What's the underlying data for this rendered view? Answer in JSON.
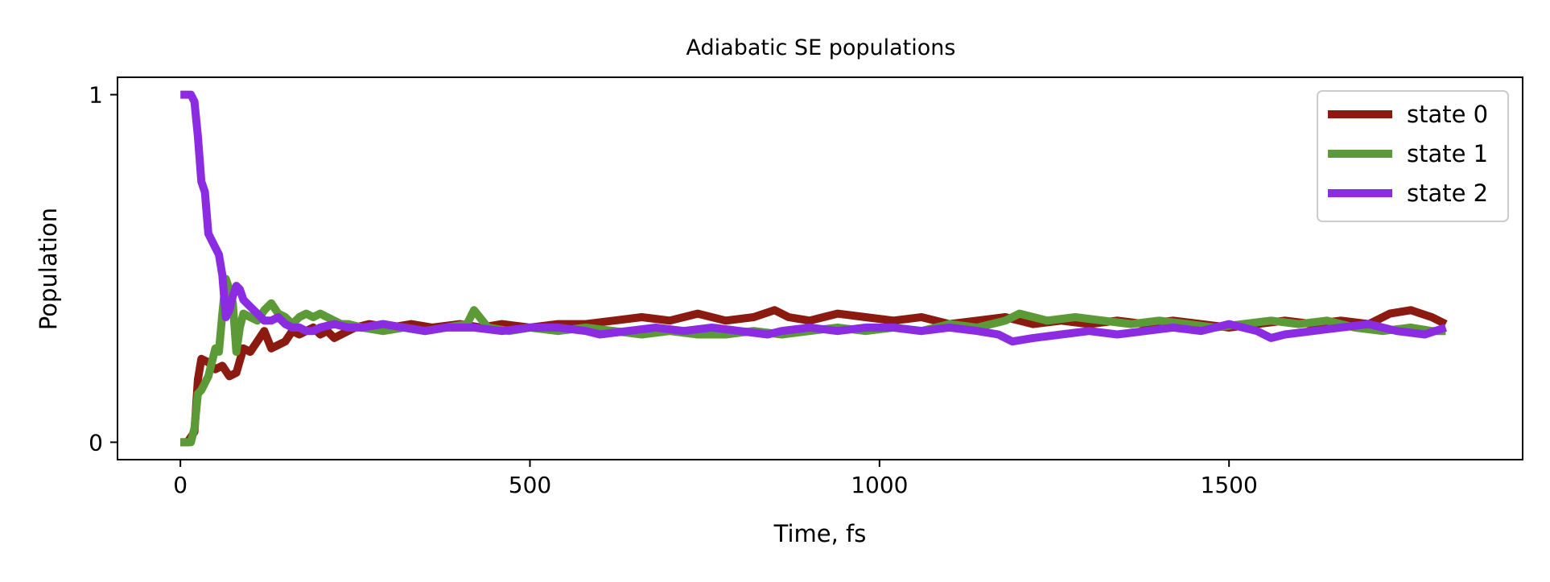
{
  "chart_data": {
    "type": "line",
    "title": "Adiabatic SE populations",
    "xlabel": "Time, fs",
    "ylabel": "Population",
    "xlim": [
      -90,
      1920
    ],
    "ylim": [
      -0.05,
      1.05
    ],
    "xticks": [
      0,
      500,
      1000,
      1500
    ],
    "xtick_labels": [
      "0",
      "500",
      "1000",
      "1500"
    ],
    "yticks": [
      0,
      1
    ],
    "ytick_labels": [
      "0",
      "1"
    ],
    "grid": false,
    "legend_position": "top-right",
    "series": [
      {
        "name": "state 0",
        "color": "#8b1a10",
        "x": [
          0,
          10,
          20,
          25,
          30,
          40,
          50,
          60,
          70,
          80,
          90,
          100,
          110,
          120,
          130,
          140,
          150,
          160,
          170,
          180,
          190,
          200,
          210,
          220,
          230,
          240,
          250,
          270,
          300,
          330,
          360,
          400,
          430,
          460,
          500,
          540,
          580,
          620,
          660,
          700,
          740,
          780,
          820,
          850,
          870,
          900,
          940,
          980,
          1020,
          1060,
          1100,
          1140,
          1180,
          1220,
          1260,
          1300,
          1340,
          1380,
          1420,
          1460,
          1500,
          1540,
          1580,
          1620,
          1660,
          1700,
          1730,
          1760,
          1790,
          1810
        ],
        "y": [
          0.0,
          0.0,
          0.03,
          0.18,
          0.24,
          0.23,
          0.21,
          0.22,
          0.19,
          0.2,
          0.27,
          0.26,
          0.29,
          0.32,
          0.27,
          0.28,
          0.29,
          0.32,
          0.31,
          0.32,
          0.33,
          0.31,
          0.32,
          0.3,
          0.31,
          0.32,
          0.33,
          0.34,
          0.33,
          0.34,
          0.33,
          0.34,
          0.33,
          0.34,
          0.33,
          0.34,
          0.34,
          0.35,
          0.36,
          0.35,
          0.37,
          0.35,
          0.36,
          0.38,
          0.36,
          0.35,
          0.37,
          0.36,
          0.35,
          0.36,
          0.34,
          0.35,
          0.36,
          0.34,
          0.35,
          0.34,
          0.35,
          0.34,
          0.35,
          0.34,
          0.33,
          0.34,
          0.35,
          0.34,
          0.35,
          0.34,
          0.37,
          0.38,
          0.36,
          0.34
        ]
      },
      {
        "name": "state 1",
        "color": "#5c9a37",
        "x": [
          0,
          10,
          15,
          20,
          25,
          30,
          40,
          50,
          55,
          60,
          65,
          70,
          75,
          80,
          85,
          90,
          100,
          110,
          120,
          130,
          140,
          150,
          160,
          170,
          180,
          190,
          200,
          210,
          220,
          230,
          240,
          260,
          290,
          320,
          350,
          380,
          410,
          420,
          440,
          470,
          500,
          540,
          580,
          620,
          660,
          700,
          740,
          780,
          820,
          860,
          900,
          940,
          980,
          1020,
          1060,
          1100,
          1140,
          1180,
          1200,
          1240,
          1280,
          1320,
          1360,
          1400,
          1440,
          1480,
          1520,
          1560,
          1600,
          1640,
          1680,
          1720,
          1760,
          1790,
          1810
        ],
        "y": [
          0.0,
          0.0,
          0.0,
          0.04,
          0.14,
          0.15,
          0.19,
          0.27,
          0.26,
          0.37,
          0.47,
          0.44,
          0.4,
          0.26,
          0.33,
          0.37,
          0.36,
          0.35,
          0.38,
          0.4,
          0.37,
          0.36,
          0.34,
          0.36,
          0.37,
          0.36,
          0.37,
          0.36,
          0.35,
          0.34,
          0.34,
          0.33,
          0.32,
          0.33,
          0.32,
          0.33,
          0.34,
          0.38,
          0.33,
          0.32,
          0.33,
          0.32,
          0.33,
          0.32,
          0.31,
          0.32,
          0.31,
          0.31,
          0.32,
          0.31,
          0.32,
          0.33,
          0.32,
          0.33,
          0.32,
          0.34,
          0.33,
          0.35,
          0.37,
          0.35,
          0.36,
          0.35,
          0.34,
          0.35,
          0.34,
          0.33,
          0.34,
          0.35,
          0.34,
          0.35,
          0.33,
          0.32,
          0.33,
          0.32,
          0.32
        ]
      },
      {
        "name": "state 2",
        "color": "#8b2be2",
        "x": [
          0,
          10,
          15,
          20,
          25,
          30,
          35,
          40,
          45,
          50,
          55,
          60,
          65,
          70,
          75,
          80,
          85,
          90,
          100,
          110,
          120,
          130,
          140,
          150,
          160,
          170,
          180,
          190,
          200,
          220,
          240,
          260,
          290,
          320,
          350,
          380,
          420,
          460,
          500,
          540,
          580,
          600,
          640,
          680,
          720,
          760,
          800,
          840,
          860,
          900,
          940,
          980,
          1020,
          1060,
          1100,
          1140,
          1170,
          1190,
          1220,
          1260,
          1300,
          1340,
          1380,
          1420,
          1460,
          1500,
          1540,
          1560,
          1580,
          1620,
          1660,
          1700,
          1740,
          1780,
          1810
        ],
        "y": [
          1.0,
          1.0,
          1.0,
          0.98,
          0.88,
          0.75,
          0.72,
          0.6,
          0.58,
          0.56,
          0.54,
          0.48,
          0.36,
          0.38,
          0.42,
          0.45,
          0.44,
          0.41,
          0.39,
          0.37,
          0.35,
          0.35,
          0.36,
          0.34,
          0.33,
          0.33,
          0.32,
          0.32,
          0.33,
          0.34,
          0.33,
          0.33,
          0.34,
          0.33,
          0.32,
          0.33,
          0.33,
          0.32,
          0.33,
          0.33,
          0.32,
          0.31,
          0.32,
          0.33,
          0.32,
          0.33,
          0.32,
          0.31,
          0.32,
          0.33,
          0.32,
          0.33,
          0.33,
          0.32,
          0.33,
          0.32,
          0.31,
          0.29,
          0.3,
          0.31,
          0.32,
          0.31,
          0.32,
          0.33,
          0.32,
          0.34,
          0.32,
          0.3,
          0.31,
          0.32,
          0.33,
          0.34,
          0.32,
          0.31,
          0.33
        ]
      }
    ]
  }
}
